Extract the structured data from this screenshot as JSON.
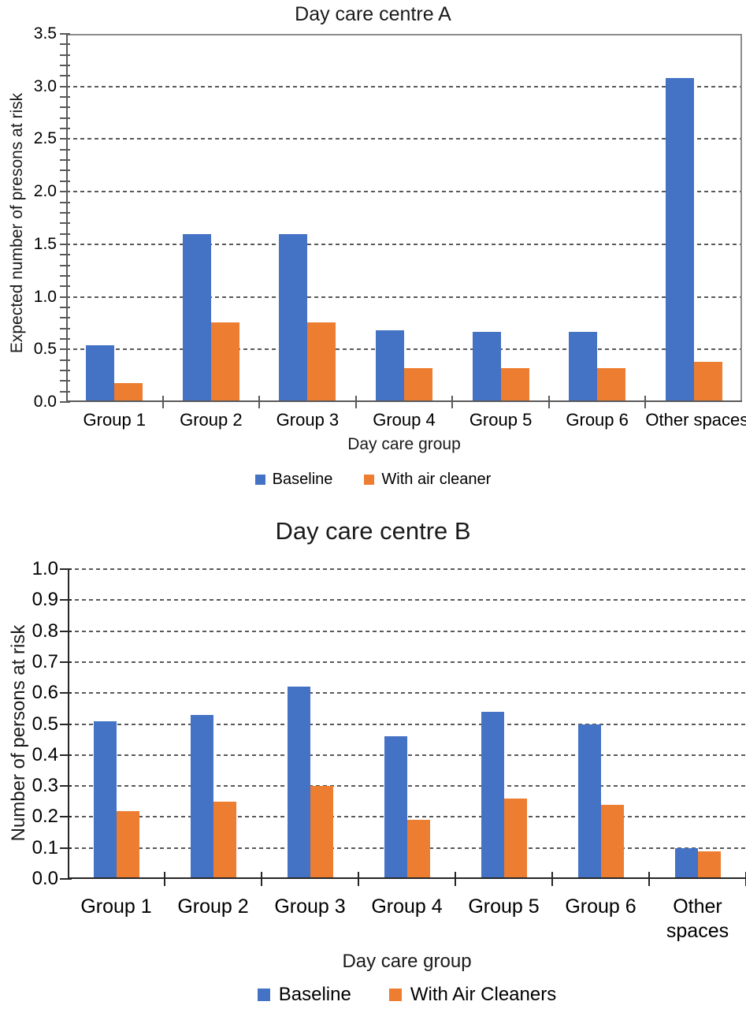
{
  "figure": {
    "background": "#ffffff",
    "accent_blue": "#4472C4",
    "accent_orange": "#ED7D31"
  },
  "chart_data": [
    {
      "type": "bar",
      "title": "Day care centre A",
      "xlabel": "Day care group",
      "ylabel": "Expected number of presons at risk",
      "categories": [
        "Group 1",
        "Group 2",
        "Group 3",
        "Group 4",
        "Group 5",
        "Group 6",
        "Other spaces"
      ],
      "series": [
        {
          "name": "Baseline",
          "color": "#4472C4",
          "values": [
            0.54,
            1.6,
            1.6,
            0.68,
            0.67,
            0.67,
            3.08
          ]
        },
        {
          "name": "With air cleaner",
          "color": "#ED7D31",
          "values": [
            0.18,
            0.76,
            0.76,
            0.32,
            0.32,
            0.32,
            0.38
          ]
        }
      ],
      "ylim": [
        0,
        3.5
      ],
      "ytick_step": 0.5,
      "minor_tick_step": 0.1,
      "grid": "horizontal dashed at 0.5 intervals",
      "plot_border": "top and right solid gray",
      "legend_position": "bottom"
    },
    {
      "type": "bar",
      "title": "Day care centre B",
      "xlabel": "Day care group",
      "ylabel": "Number of persons at risk",
      "categories": [
        "Group 1",
        "Group 2",
        "Group 3",
        "Group 4",
        "Group 5",
        "Group 6",
        "Other spaces"
      ],
      "series": [
        {
          "name": "Baseline",
          "color": "#4472C4",
          "values": [
            0.51,
            0.53,
            0.62,
            0.46,
            0.54,
            0.5,
            0.1
          ]
        },
        {
          "name": "With Air Cleaners",
          "color": "#ED7D31",
          "values": [
            0.22,
            0.25,
            0.3,
            0.19,
            0.26,
            0.24,
            0.09
          ]
        }
      ],
      "ylim": [
        0,
        1.0
      ],
      "ytick_step": 0.1,
      "grid": "horizontal dashed at 0.1 intervals",
      "plot_border": "none",
      "legend_position": "bottom"
    }
  ]
}
